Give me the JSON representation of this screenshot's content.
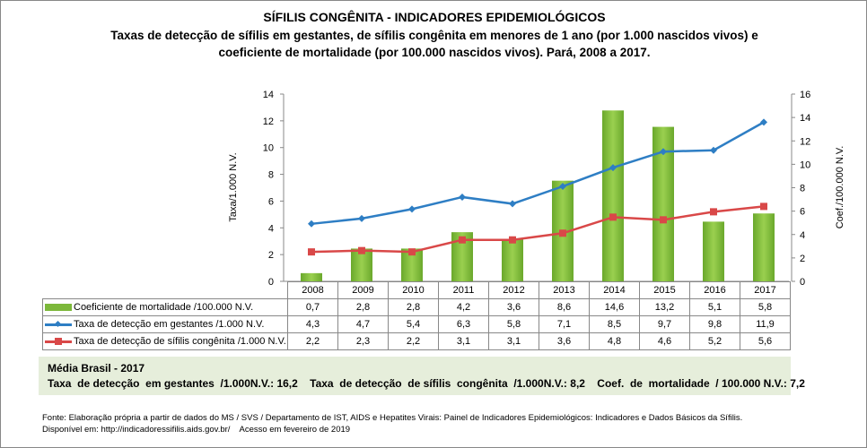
{
  "header": {
    "title": "SÍFILIS CONGÊNITA - INDICADORES EPIDEMIOLÓGICOS",
    "subtitle_line1": "Taxas de detecção de sífilis em gestantes, de sífilis congênita em menores de 1 ano (por 1.000 nascidos vivos) e",
    "subtitle_line2": "coeficiente de mortalidade (por 100.000 nascidos vivos). Pará, 2008 a 2017."
  },
  "chart_data": {
    "type": "bar+line",
    "categories": [
      "2008",
      "2009",
      "2010",
      "2011",
      "2012",
      "2013",
      "2014",
      "2015",
      "2016",
      "2017"
    ],
    "ylabel_left": "Taxa/1.000 N.V.",
    "ylim_left": [
      0,
      14
    ],
    "yticks_left": [
      0,
      2,
      4,
      6,
      8,
      10,
      12,
      14
    ],
    "ylabel_right": "Coef./100.000 N.V.",
    "ylim_right": [
      0,
      16
    ],
    "yticks_right": [
      0,
      2,
      4,
      6,
      8,
      10,
      12,
      14,
      16
    ],
    "series": [
      {
        "name": "Coeficiente de mortalidade /100.000 N.V.",
        "type": "bar",
        "axis": "right",
        "color": "#7cb83a",
        "values": [
          "0,7",
          "2,8",
          "2,8",
          "4,2",
          "3,6",
          "8,6",
          "14,6",
          "13,2",
          "5,1",
          "5,8"
        ]
      },
      {
        "name": "Taxa de detecção em gestantes /1.000 N.V.",
        "type": "line",
        "axis": "left",
        "marker": "diamond",
        "color": "#2e7ec4",
        "values": [
          "4,3",
          "4,7",
          "5,4",
          "6,3",
          "5,8",
          "7,1",
          "8,5",
          "9,7",
          "9,8",
          "11,9"
        ]
      },
      {
        "name": "Taxa de detecção de sífilis congênita /1.000 N.V.",
        "type": "line",
        "axis": "left",
        "marker": "square",
        "color": "#d94848",
        "values": [
          "2,2",
          "2,3",
          "2,2",
          "3,1",
          "3,1",
          "3,6",
          "4,8",
          "4,6",
          "5,2",
          "5,6"
        ]
      }
    ],
    "legend": "data-table"
  },
  "brasil": {
    "heading": "Média Brasil  - 2017",
    "line": "Taxa  de detecção  em gestantes  /1.000N.V.: 16,2    Taxa  de detecção  de sífilis  congênita  /1.000N.V.: 8,2    Coef.  de  mortalidade  / 100.000 N.V.: 7,2"
  },
  "footer": {
    "line1": "Fonte: Elaboração própria a partir de dados do MS / SVS / Departamento de IST, AIDS e Hepatites Virais: Painel de Indicadores Epidemiológicos: Indicadores e Dados Básicos da Sífilis.",
    "line2": "Disponível em: http://indicadoressifilis.aids.gov.br/    Acesso em fevereiro de 2019"
  }
}
